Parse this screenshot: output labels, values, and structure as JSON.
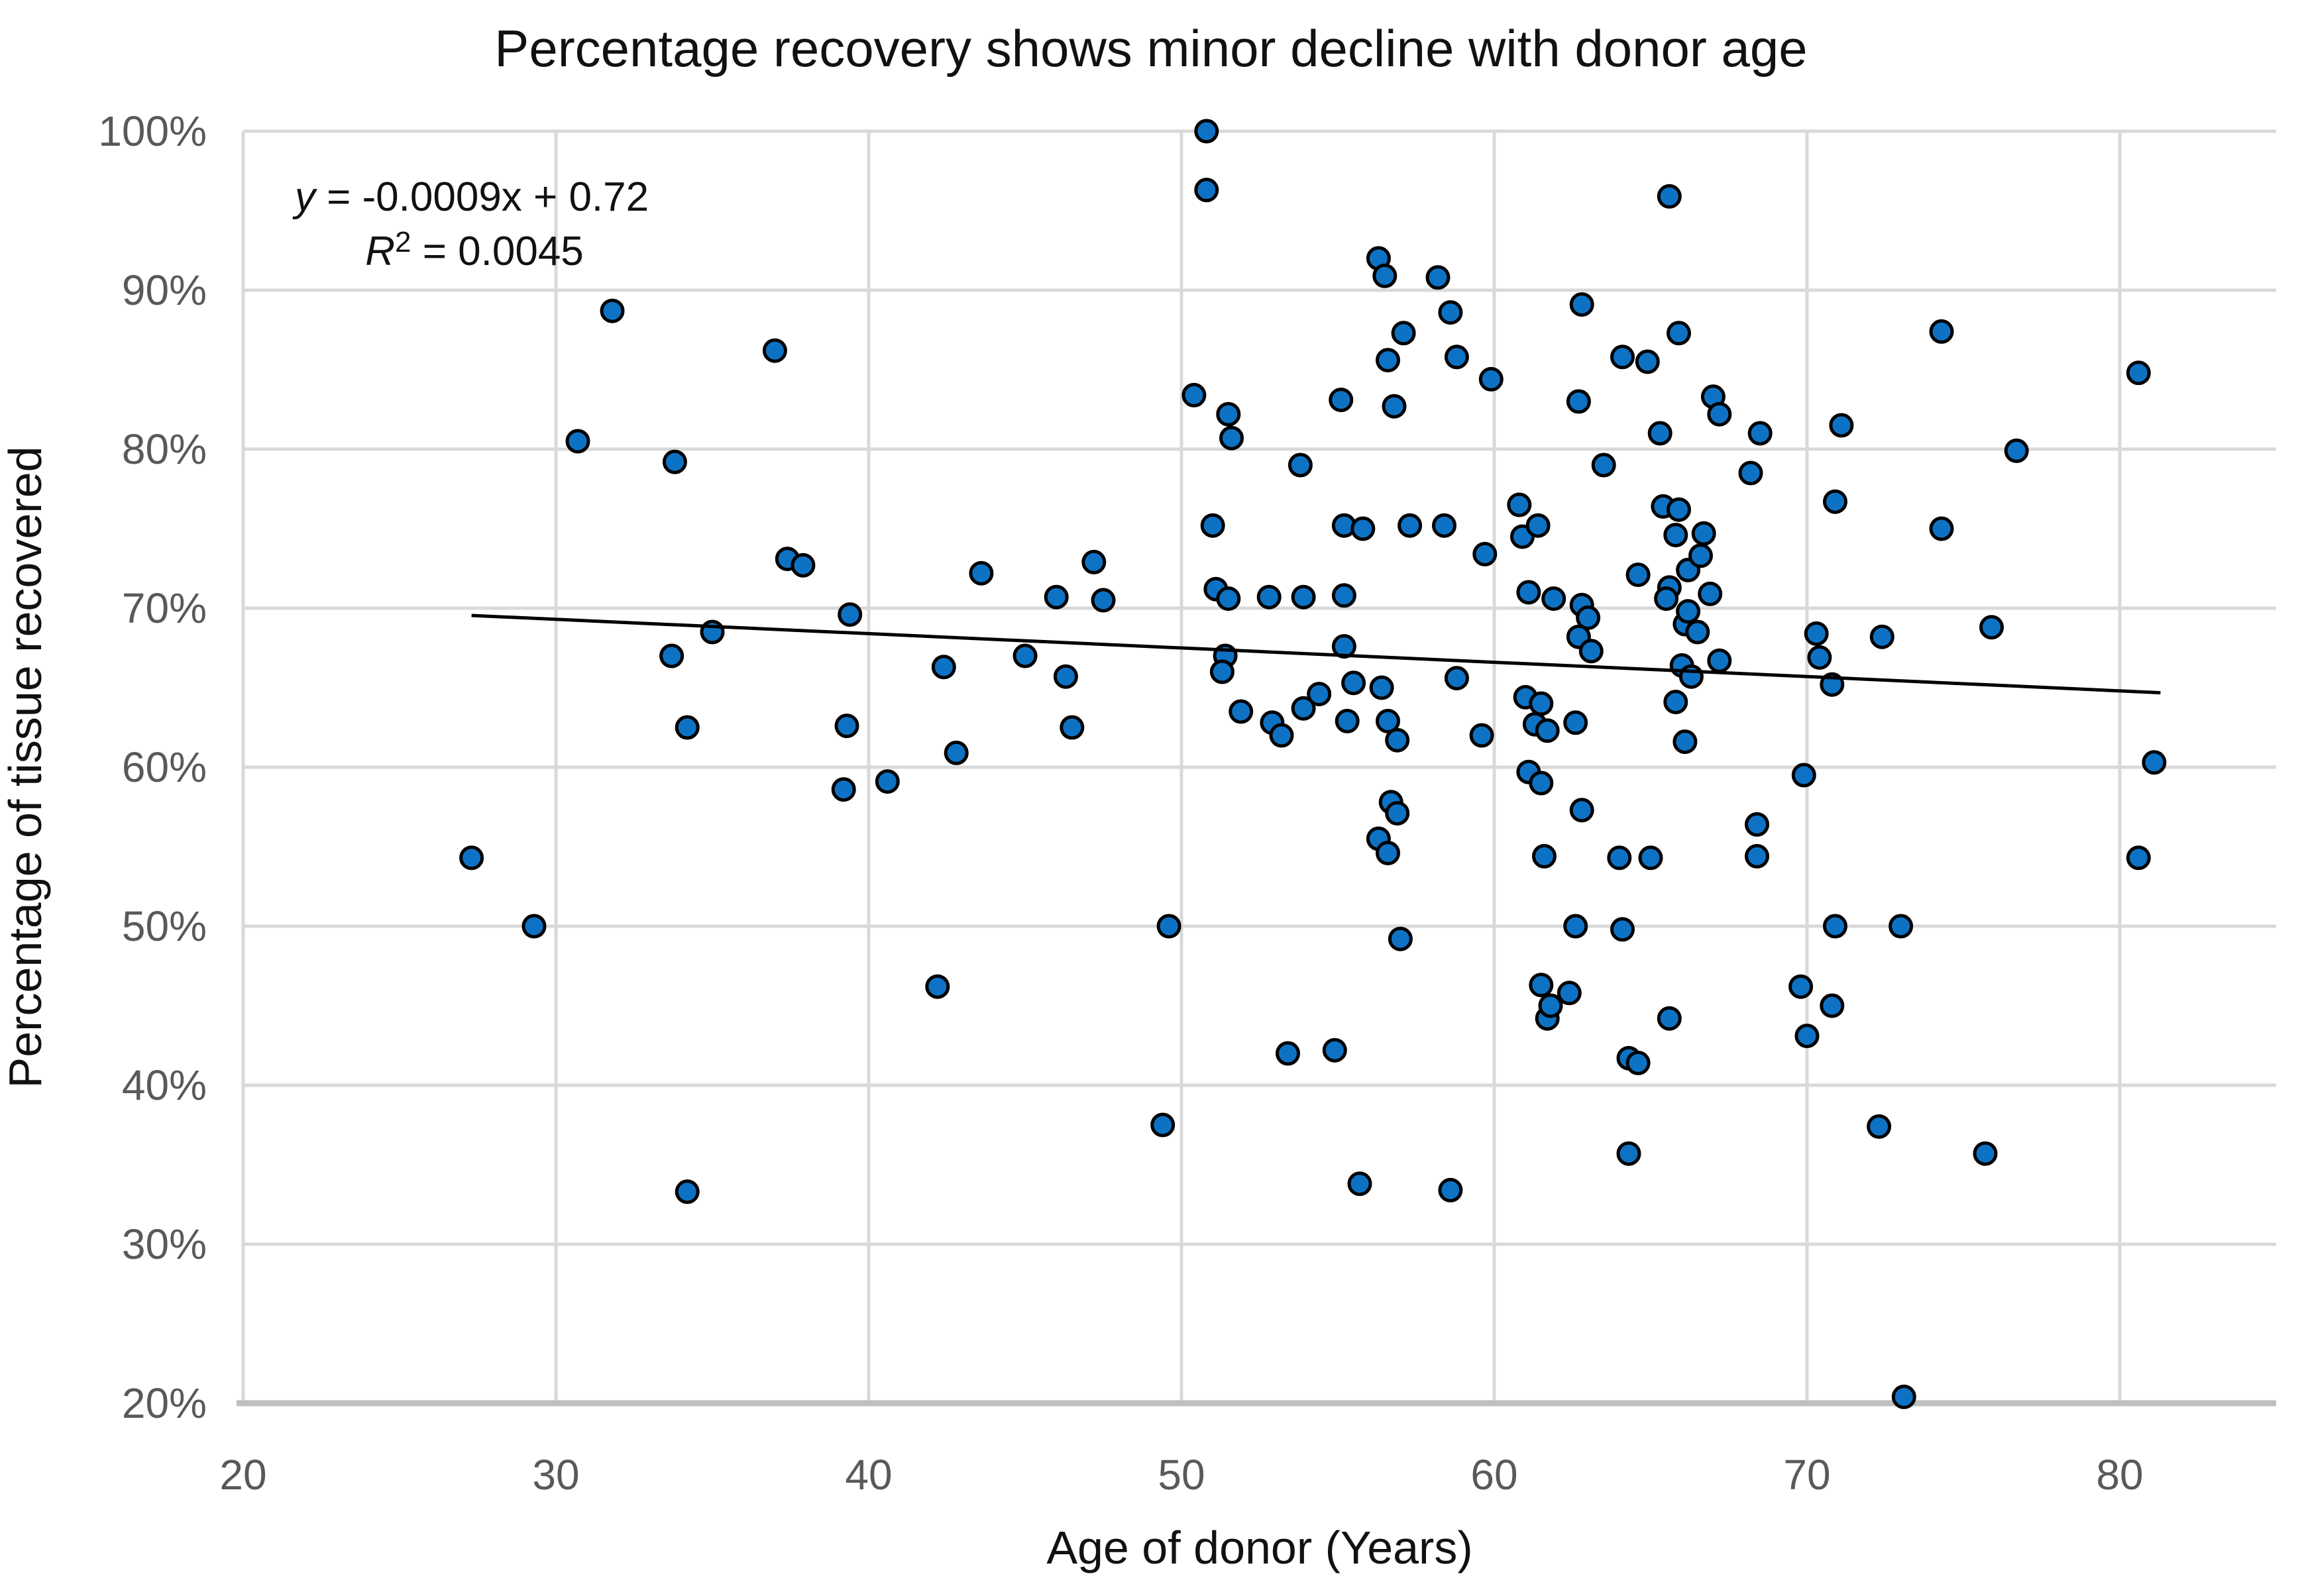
{
  "title": "Percentage recovery shows minor decline with donor age",
  "annotation": {
    "equation_var": "y",
    "equation_rest": " = -0.0009x + 0.72",
    "r2_var": "R",
    "r2_sup": "2",
    "r2_rest": " = 0.0045"
  },
  "chart_data": {
    "type": "scatter",
    "title": "Percentage recovery shows minor decline with donor age",
    "xlabel": "Age of donor (Years)",
    "ylabel": "Percentage of tissue recovered",
    "xlim": [
      20,
      85
    ],
    "ylim_percent": [
      20,
      100
    ],
    "x_ticks": [
      20,
      30,
      40,
      50,
      60,
      70,
      80
    ],
    "y_ticks_percent": [
      20,
      30,
      40,
      50,
      60,
      70,
      80,
      90,
      100
    ],
    "y_tick_suffix": "%",
    "grid": true,
    "legend": "none",
    "trendline": {
      "slope": -0.0009,
      "intercept": 0.72,
      "x_start": 27.3,
      "x_end": 81.3,
      "equation_label": "y = -0.0009x + 0.72",
      "r_squared_label": "R² = 0.0045"
    },
    "points": [
      [
        27.3,
        54.3
      ],
      [
        29.3,
        50.0
      ],
      [
        30.7,
        80.5
      ],
      [
        31.8,
        88.7
      ],
      [
        33.7,
        67.0
      ],
      [
        33.8,
        79.2
      ],
      [
        34.2,
        62.5
      ],
      [
        34.2,
        33.3
      ],
      [
        35.0,
        68.5
      ],
      [
        37.0,
        86.2
      ],
      [
        37.4,
        73.1
      ],
      [
        37.9,
        72.7
      ],
      [
        39.2,
        58.6
      ],
      [
        39.3,
        62.6
      ],
      [
        39.4,
        69.6
      ],
      [
        40.6,
        59.1
      ],
      [
        42.4,
        66.3
      ],
      [
        42.2,
        46.2
      ],
      [
        42.8,
        60.9
      ],
      [
        43.6,
        72.2
      ],
      [
        45.0,
        67.0
      ],
      [
        46.0,
        70.7
      ],
      [
        46.3,
        65.7
      ],
      [
        46.5,
        62.5
      ],
      [
        47.2,
        72.9
      ],
      [
        47.5,
        70.5
      ],
      [
        49.4,
        37.5
      ],
      [
        49.6,
        50.0
      ],
      [
        50.4,
        83.4
      ],
      [
        50.8,
        100.0
      ],
      [
        50.8,
        96.3
      ],
      [
        51.0,
        75.2
      ],
      [
        51.1,
        71.2
      ],
      [
        51.4,
        67.0
      ],
      [
        51.3,
        66.0
      ],
      [
        51.5,
        70.6
      ],
      [
        51.5,
        82.2
      ],
      [
        51.6,
        80.7
      ],
      [
        51.9,
        63.5
      ],
      [
        52.9,
        62.8
      ],
      [
        53.2,
        62.0
      ],
      [
        52.8,
        70.7
      ],
      [
        53.4,
        42.0
      ],
      [
        53.9,
        63.7
      ],
      [
        54.4,
        64.6
      ],
      [
        53.8,
        79.0
      ],
      [
        53.9,
        70.7
      ],
      [
        54.9,
        42.2
      ],
      [
        55.1,
        83.1
      ],
      [
        55.2,
        75.2
      ],
      [
        55.2,
        70.8
      ],
      [
        55.2,
        67.6
      ],
      [
        55.3,
        62.9
      ],
      [
        55.5,
        65.3
      ],
      [
        55.7,
        33.8
      ],
      [
        55.8,
        75.0
      ],
      [
        56.3,
        92.0
      ],
      [
        56.5,
        90.9
      ],
      [
        56.6,
        85.6
      ],
      [
        56.8,
        82.7
      ],
      [
        57.1,
        87.3
      ],
      [
        56.4,
        65.0
      ],
      [
        56.6,
        62.9
      ],
      [
        56.9,
        61.7
      ],
      [
        56.7,
        57.8
      ],
      [
        56.9,
        57.1
      ],
      [
        56.3,
        55.5
      ],
      [
        56.6,
        54.6
      ],
      [
        57.0,
        49.2
      ],
      [
        57.3,
        75.2
      ],
      [
        58.2,
        90.8
      ],
      [
        58.4,
        75.2
      ],
      [
        58.6,
        88.6
      ],
      [
        58.8,
        85.8
      ],
      [
        58.8,
        65.6
      ],
      [
        59.6,
        62.0
      ],
      [
        59.7,
        73.4
      ],
      [
        59.9,
        84.4
      ],
      [
        58.6,
        33.4
      ],
      [
        60.8,
        76.5
      ],
      [
        60.9,
        74.5
      ],
      [
        61.0,
        64.4
      ],
      [
        61.1,
        71.0
      ],
      [
        61.1,
        59.7
      ],
      [
        61.3,
        62.7
      ],
      [
        61.4,
        75.2
      ],
      [
        61.5,
        64.0
      ],
      [
        61.5,
        59.0
      ],
      [
        61.5,
        46.3
      ],
      [
        61.6,
        54.4
      ],
      [
        61.7,
        62.3
      ],
      [
        61.7,
        44.2
      ],
      [
        61.8,
        45.0
      ],
      [
        61.9,
        70.6
      ],
      [
        62.4,
        45.8
      ],
      [
        62.7,
        83.0
      ],
      [
        62.6,
        62.8
      ],
      [
        62.6,
        50.0
      ],
      [
        62.7,
        68.2
      ],
      [
        62.8,
        89.1
      ],
      [
        62.8,
        70.2
      ],
      [
        62.8,
        57.3
      ],
      [
        63.0,
        69.4
      ],
      [
        63.1,
        67.3
      ],
      [
        63.5,
        79.0
      ],
      [
        64.1,
        85.8
      ],
      [
        64.0,
        54.3
      ],
      [
        64.1,
        49.8
      ],
      [
        64.3,
        41.7
      ],
      [
        64.3,
        35.7
      ],
      [
        64.9,
        85.5
      ],
      [
        64.6,
        72.1
      ],
      [
        64.6,
        41.4
      ],
      [
        65.0,
        54.3
      ],
      [
        65.3,
        81.0
      ],
      [
        65.4,
        76.4
      ],
      [
        65.6,
        95.9
      ],
      [
        65.6,
        71.3
      ],
      [
        65.6,
        44.2
      ],
      [
        65.5,
        70.6
      ],
      [
        65.8,
        74.6
      ],
      [
        65.8,
        64.1
      ],
      [
        65.9,
        76.2
      ],
      [
        65.9,
        87.3
      ],
      [
        66.0,
        66.4
      ],
      [
        66.1,
        69.0
      ],
      [
        66.1,
        61.6
      ],
      [
        66.2,
        72.4
      ],
      [
        66.2,
        69.8
      ],
      [
        66.3,
        65.7
      ],
      [
        66.5,
        68.5
      ],
      [
        66.6,
        73.3
      ],
      [
        66.7,
        74.7
      ],
      [
        66.9,
        70.9
      ],
      [
        67.0,
        83.3
      ],
      [
        67.2,
        66.7
      ],
      [
        67.2,
        82.2
      ],
      [
        68.2,
        78.5
      ],
      [
        68.4,
        56.4
      ],
      [
        68.4,
        54.4
      ],
      [
        68.5,
        81.0
      ],
      [
        69.8,
        46.2
      ],
      [
        69.9,
        59.5
      ],
      [
        70.0,
        43.1
      ],
      [
        70.3,
        68.4
      ],
      [
        70.4,
        66.9
      ],
      [
        70.8,
        65.2
      ],
      [
        70.8,
        45.0
      ],
      [
        70.9,
        76.7
      ],
      [
        70.9,
        50.0
      ],
      [
        71.1,
        81.5
      ],
      [
        72.3,
        37.4
      ],
      [
        72.4,
        68.2
      ],
      [
        73.0,
        50.0
      ],
      [
        73.1,
        20.4
      ],
      [
        74.3,
        87.4
      ],
      [
        74.3,
        75.0
      ],
      [
        75.7,
        35.7
      ],
      [
        75.9,
        68.8
      ],
      [
        76.7,
        79.9
      ],
      [
        80.6,
        84.8
      ],
      [
        80.6,
        54.3
      ],
      [
        81.1,
        60.3
      ]
    ],
    "colors": {
      "point_fill": "#0e72c4",
      "point_stroke": "#000000",
      "trendline": "#000000",
      "gridline": "#d9d9d9",
      "axis_line": "#bfbfbf",
      "tick_label": "#595959",
      "text": "#111111",
      "background": "#ffffff"
    },
    "marker": {
      "radius": 16,
      "stroke_width": 5
    }
  },
  "layout_note": "scatter chart with linear trendline, gridlines on, no legend"
}
